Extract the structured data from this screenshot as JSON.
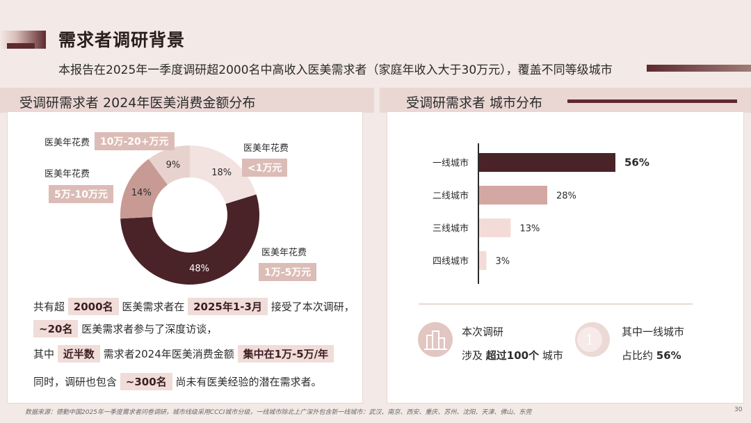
{
  "header": {
    "title": "需求者调研背景",
    "subtitle": "本报告在2025年一季度调研超2000名中高收入医美需求者（家庭年收入大于30万元），覆盖不同等级城市"
  },
  "left_section": {
    "title": "受调研需求者 2024年医美消费金额分布",
    "label_prefix": "医美年花费",
    "paragraph": {
      "l1_a": "共有超",
      "l1_b": "2000名",
      "l1_c": "医美需求者在",
      "l1_d": "2025年1-3月",
      "l1_e": "接受了本次调研，",
      "l2_a": "~20名",
      "l2_b": "医美需求者参与了深度访谈，",
      "l3_a": "其中",
      "l3_b": "近半数",
      "l3_c": "需求者2024年医美消费金额",
      "l3_d": "集中在1万-5万/年",
      "l4_a": "同时，调研也包含",
      "l4_b": "~300名",
      "l4_c": "尚未有医美经验的潜在需求者。"
    }
  },
  "right_section": {
    "title": "受调研需求者 城市分布",
    "stat1": {
      "line1": "本次调研",
      "line2_a": "涉及",
      "line2_b": "超过100个",
      "line2_c": "城市"
    },
    "stat2": {
      "line1": "其中一线城市",
      "line2_a": "占比约",
      "line2_b": "56%",
      "icon_text": "1"
    }
  },
  "chart_data": [
    {
      "type": "pie",
      "variant": "donut",
      "categories": [
        "<1万元",
        "1万-5万元",
        "5万-10万元",
        "10万-20+万元"
      ],
      "values": [
        18,
        48,
        14,
        9
      ],
      "value_labels": [
        "18%",
        "48%",
        "14%",
        "9%"
      ],
      "colors": [
        "#f3e3e0",
        "#4a2328",
        "#c89a94",
        "#e8d2ce"
      ],
      "title": "受调研需求者 2024年医美消费金额分布"
    },
    {
      "type": "bar",
      "orientation": "horizontal",
      "categories": [
        "一线城市",
        "二线城市",
        "三线城市",
        "四线城市"
      ],
      "values": [
        56,
        28,
        13,
        3
      ],
      "value_labels": [
        "56%",
        "28%",
        "13%",
        "3%"
      ],
      "colors": [
        "#4a2328",
        "#d4a8a2",
        "#f3dcd7",
        "#f3dcd7"
      ],
      "title": "受调研需求者 城市分布",
      "xlim": [
        0,
        56
      ]
    }
  ],
  "footer": {
    "source": "数据来源：德勤中国2025年一季度需求者问卷调研，城市线级采用CCCI城市分级，一线城市除北上广深外包含新一线城市：武汉、南京、西安、重庆、苏州、沈阳、天津、佛山、东莞",
    "page": "30"
  }
}
